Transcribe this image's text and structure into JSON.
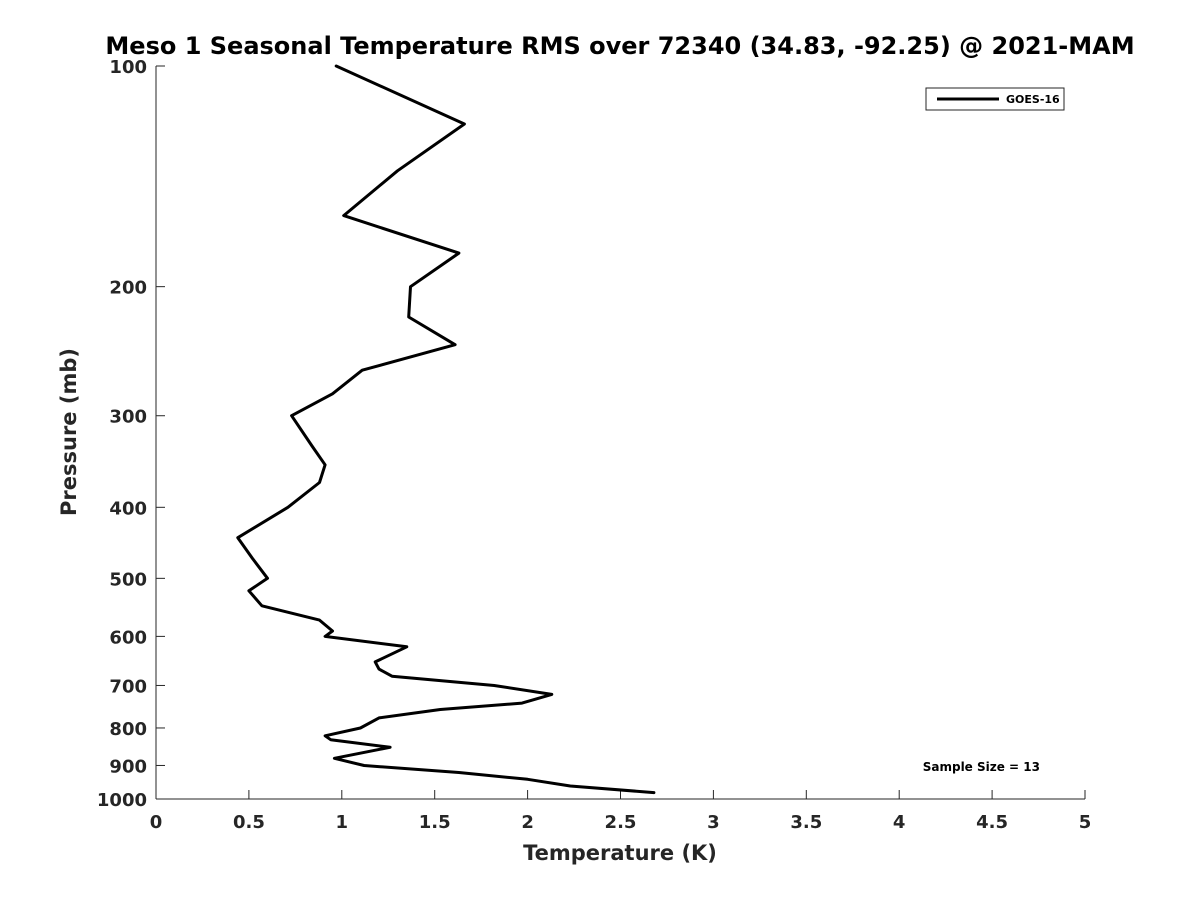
{
  "chart_data": {
    "type": "line",
    "title": "Meso 1 Seasonal Temperature RMS over 72340 (34.83, -92.25) @ 2021-MAM",
    "xlabel": "Temperature (K)",
    "ylabel": "Pressure (mb)",
    "xlim": [
      0,
      5
    ],
    "ylim": [
      100,
      1000
    ],
    "y_scale": "log",
    "y_reversed": true,
    "x_ticks": [
      "0",
      "0.5",
      "1",
      "1.5",
      "2",
      "2.5",
      "3",
      "3.5",
      "4",
      "4.5",
      "5"
    ],
    "y_ticks": [
      "100",
      "200",
      "300",
      "400",
      "500",
      "600",
      "700",
      "800",
      "900",
      "1000"
    ],
    "grid": false,
    "legend_position": "top-right",
    "annotation": "Sample Size = 13",
    "series": [
      {
        "name": "GOES-16",
        "color": "#000000",
        "points": [
          [
            0.97,
            100
          ],
          [
            1.66,
            120
          ],
          [
            1.3,
            139
          ],
          [
            1.01,
            160
          ],
          [
            1.63,
            180
          ],
          [
            1.37,
            200
          ],
          [
            1.36,
            220
          ],
          [
            1.61,
            240
          ],
          [
            1.11,
            260
          ],
          [
            0.95,
            280
          ],
          [
            0.73,
            300
          ],
          [
            0.84,
            330
          ],
          [
            0.91,
            350
          ],
          [
            0.88,
            370
          ],
          [
            0.71,
            400
          ],
          [
            0.44,
            440
          ],
          [
            0.52,
            470
          ],
          [
            0.6,
            500
          ],
          [
            0.5,
            520
          ],
          [
            0.57,
            545
          ],
          [
            0.88,
            570
          ],
          [
            0.95,
            590
          ],
          [
            0.91,
            600
          ],
          [
            1.35,
            620
          ],
          [
            1.18,
            650
          ],
          [
            1.2,
            665
          ],
          [
            1.27,
            680
          ],
          [
            1.82,
            700
          ],
          [
            2.13,
            720
          ],
          [
            1.97,
            740
          ],
          [
            1.53,
            755
          ],
          [
            1.2,
            775
          ],
          [
            1.1,
            800
          ],
          [
            0.91,
            820
          ],
          [
            0.94,
            830
          ],
          [
            1.26,
            850
          ],
          [
            0.96,
            880
          ],
          [
            1.12,
            900
          ],
          [
            1.63,
            920
          ],
          [
            2.0,
            940
          ],
          [
            2.23,
            960
          ],
          [
            2.68,
            980
          ]
        ]
      }
    ]
  }
}
